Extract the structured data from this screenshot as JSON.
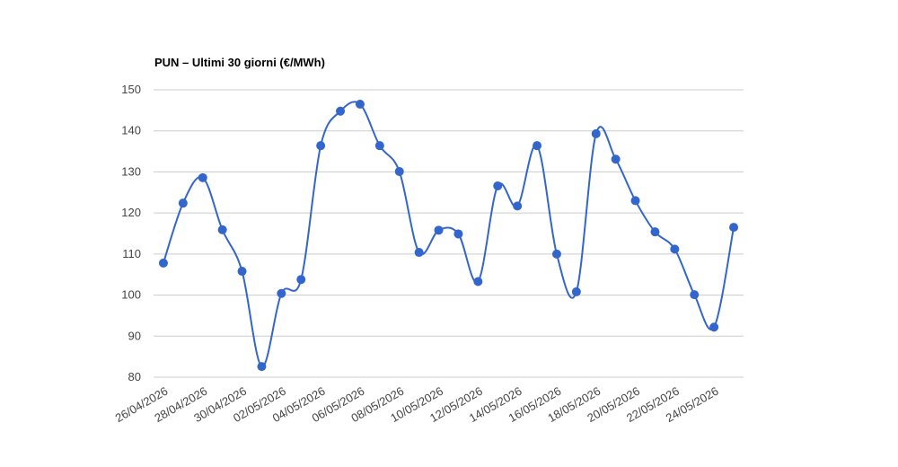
{
  "chart_data": {
    "type": "line",
    "title": "PUN – Ultimi 30 giorni (€/MWh)",
    "categories": [
      "26/04/2026",
      null,
      "28/04/2026",
      null,
      "30/04/2026",
      null,
      "02/05/2026",
      null,
      "04/05/2026",
      null,
      "06/05/2026",
      null,
      "08/05/2026",
      null,
      "10/05/2026",
      null,
      "12/05/2026",
      null,
      "14/05/2026",
      null,
      "16/05/2026",
      null,
      "18/05/2026",
      null,
      "20/05/2026",
      null,
      "22/05/2026",
      null,
      "24/05/2026",
      null
    ],
    "series": [
      {
        "color": "#3366cc",
        "values": [
          107.8,
          122.4,
          128.6,
          115.9,
          105.8,
          82.6,
          100.4,
          103.8,
          136.4,
          144.8,
          146.5,
          136.4,
          130.1,
          110.4,
          115.8,
          114.9,
          103.3,
          126.6,
          121.7,
          136.4,
          110.0,
          100.8,
          139.3,
          133.1,
          123.0,
          115.4,
          111.2,
          100.1,
          92.2,
          116.5
        ]
      }
    ],
    "ylim": [
      80,
      150
    ],
    "yticks": [
      80,
      90,
      100,
      110,
      120,
      130,
      140,
      150
    ],
    "grid": true,
    "smooth": true
  }
}
